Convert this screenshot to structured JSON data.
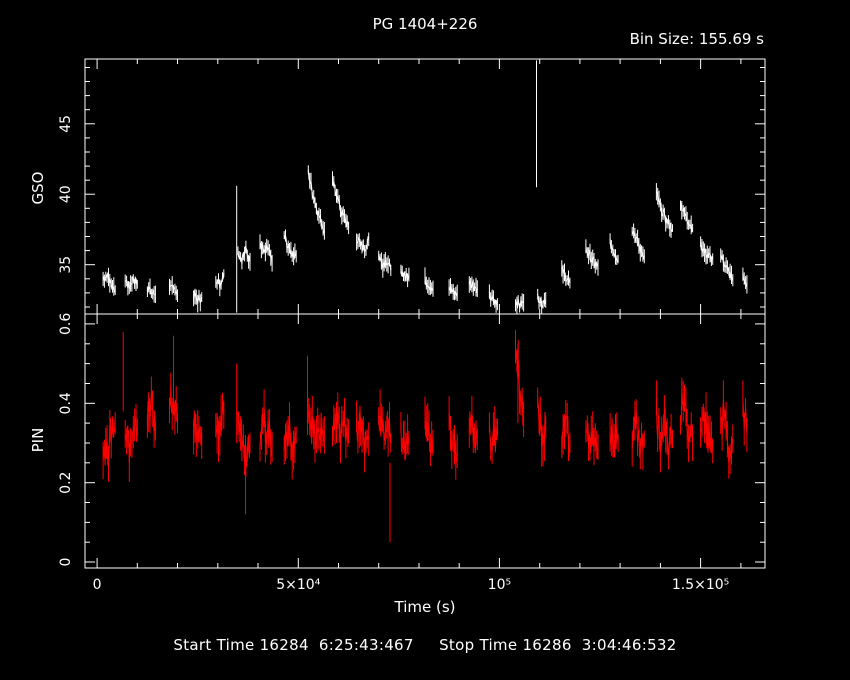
{
  "title": "PG 1404+226",
  "bin_size": "Bin Size: 155.69 s",
  "start_time": "Start Time 16284  6:25:43:467",
  "stop_time": "Stop Time 16286  3:04:46:532",
  "colors": {
    "gso": "#ffffff",
    "pin": "#ff0000",
    "axes": "#ffffff",
    "background": "#000000"
  },
  "chart_data": {
    "type": "line",
    "xlabel": "Time (s)",
    "xlim": [
      -3000,
      166000
    ],
    "x_ticks": [
      {
        "value": 0,
        "label": "0"
      },
      {
        "value": 50000,
        "label": "5×10⁴"
      },
      {
        "value": 100000,
        "label": "10⁵"
      },
      {
        "value": 150000,
        "label": "1.5×10⁵"
      }
    ],
    "panels": [
      {
        "name": "GSO",
        "ylabel": "GSO",
        "ylim": [
          31.5,
          49.6
        ],
        "y_ticks": [
          35,
          40,
          45
        ],
        "color": "#ffffff",
        "segments": [
          {
            "t": [
              1500,
              2500,
              3500,
              4500
            ],
            "v": [
              34.0,
              34.3,
              33.6,
              33.2
            ]
          },
          {
            "t": [
              7000,
              8000,
              9000,
              10000
            ],
            "v": [
              33.9,
              33.4,
              34.1,
              33.6
            ]
          },
          {
            "t": [
              12500,
              13500,
              14500
            ],
            "v": [
              33.4,
              33.0,
              32.9
            ]
          },
          {
            "t": [
              18000,
              19000,
              20000
            ],
            "v": [
              33.1,
              33.6,
              32.8
            ]
          },
          {
            "t": [
              24000,
              25000,
              26000
            ],
            "v": [
              32.9,
              32.5,
              32.7
            ]
          },
          {
            "t": [
              29500,
              30500,
              31500
            ],
            "v": [
              34.1,
              33.6,
              34.4
            ]
          },
          {
            "t": [
              35000,
              36000,
              37000,
              38000
            ],
            "v": [
              35.9,
              35.4,
              36.1,
              35.2
            ]
          },
          {
            "t": [
              40500,
              41500,
              42500,
              43500
            ],
            "v": [
              36.6,
              35.8,
              36.2,
              35.1
            ]
          },
          {
            "t": [
              46500,
              47500,
              48500,
              49500
            ],
            "v": [
              37.1,
              36.2,
              35.8,
              35.6
            ]
          },
          {
            "t": [
              52500,
              53500,
              54500,
              55500,
              56500
            ],
            "v": [
              41.5,
              40.2,
              39.1,
              38.2,
              37.4
            ]
          },
          {
            "t": [
              58500,
              59500,
              60500,
              61500,
              62500
            ],
            "v": [
              40.8,
              40.1,
              38.9,
              38.3,
              37.6
            ]
          },
          {
            "t": [
              64500,
              65500,
              66500,
              67500
            ],
            "v": [
              36.9,
              36.4,
              36.1,
              36.8
            ]
          },
          {
            "t": [
              70000,
              71000,
              72000,
              73000
            ],
            "v": [
              35.6,
              35.1,
              35.3,
              34.6
            ]
          },
          {
            "t": [
              75500,
              76500,
              77500
            ],
            "v": [
              34.6,
              34.1,
              34.3
            ]
          },
          {
            "t": [
              81500,
              82500,
              83500
            ],
            "v": [
              33.9,
              33.6,
              33.3
            ]
          },
          {
            "t": [
              87500,
              88500,
              89500
            ],
            "v": [
              33.4,
              33.1,
              33.0
            ]
          },
          {
            "t": [
              92500,
              93500,
              94500
            ],
            "v": [
              33.9,
              33.5,
              33.3
            ]
          },
          {
            "t": [
              97500,
              98500,
              99500
            ],
            "v": [
              32.8,
              32.4,
              32.2
            ]
          },
          {
            "t": [
              104000,
              105000,
              106000
            ],
            "v": [
              32.4,
              32.1,
              32.3
            ]
          },
          {
            "t": [
              109500,
              110500,
              111500
            ],
            "v": [
              32.8,
              32.3,
              32.5
            ]
          },
          {
            "t": [
              115500,
              116500,
              117500
            ],
            "v": [
              34.6,
              34.2,
              33.7
            ]
          },
          {
            "t": [
              121500,
              122500,
              123500,
              124500
            ],
            "v": [
              36.1,
              35.6,
              35.1,
              34.8
            ]
          },
          {
            "t": [
              127500,
              128500,
              129500
            ],
            "v": [
              36.5,
              35.9,
              35.4
            ]
          },
          {
            "t": [
              133000,
              134000,
              135000,
              136000
            ],
            "v": [
              37.6,
              36.8,
              36.1,
              35.6
            ]
          },
          {
            "t": [
              139000,
              140000,
              141000,
              142000,
              143000
            ],
            "v": [
              40.0,
              39.1,
              38.4,
              37.9,
              37.6
            ]
          },
          {
            "t": [
              145000,
              146000,
              147000,
              148000
            ],
            "v": [
              39.4,
              38.6,
              38.1,
              37.6
            ]
          },
          {
            "t": [
              150000,
              151000,
              152000,
              153000
            ],
            "v": [
              36.4,
              35.9,
              35.6,
              35.4
            ]
          },
          {
            "t": [
              155000,
              156000,
              157000,
              158000
            ],
            "v": [
              35.6,
              35.1,
              34.4,
              33.9
            ]
          },
          {
            "t": [
              160500,
              161500
            ],
            "v": [
              34.1,
              33.6
            ]
          }
        ],
        "spikes": [
          {
            "t": 34700,
            "v": 40.6
          },
          {
            "t": 109200,
            "v": 49.5
          }
        ]
      },
      {
        "name": "PIN",
        "ylabel": "PIN",
        "ylim": [
          -0.015,
          0.625
        ],
        "y_ticks": [
          0,
          0.2,
          0.4,
          0.6
        ],
        "color": "#ff0000",
        "segments": [
          {
            "t": [
              1500,
              2500,
              3500,
              4500
            ],
            "v": [
              0.3,
              0.27,
              0.33,
              0.35
            ]
          },
          {
            "t": [
              7000,
              8000,
              9000,
              10000
            ],
            "v": [
              0.35,
              0.29,
              0.31,
              0.34
            ]
          },
          {
            "t": [
              12500,
              13500,
              14500
            ],
            "v": [
              0.36,
              0.4,
              0.33
            ]
          },
          {
            "t": [
              18000,
              19000,
              20000
            ],
            "v": [
              0.42,
              0.38,
              0.35
            ]
          },
          {
            "t": [
              24000,
              25000,
              26000
            ],
            "v": [
              0.36,
              0.32,
              0.3
            ]
          },
          {
            "t": [
              29500,
              30500,
              31500
            ],
            "v": [
              0.33,
              0.35,
              0.37
            ]
          },
          {
            "t": [
              35000,
              36000,
              37000,
              38000
            ],
            "v": [
              0.36,
              0.32,
              0.28,
              0.3
            ]
          },
          {
            "t": [
              40500,
              41500,
              42500,
              43500
            ],
            "v": [
              0.31,
              0.35,
              0.33,
              0.29
            ]
          },
          {
            "t": [
              46500,
              47500,
              48500,
              49500
            ],
            "v": [
              0.3,
              0.34,
              0.28,
              0.32
            ]
          },
          {
            "t": [
              52500,
              53500,
              54500,
              55500,
              56500
            ],
            "v": [
              0.4,
              0.33,
              0.3,
              0.34,
              0.32
            ]
          },
          {
            "t": [
              58500,
              59500,
              60500,
              61500,
              62500
            ],
            "v": [
              0.32,
              0.36,
              0.31,
              0.35,
              0.33
            ]
          },
          {
            "t": [
              64500,
              65500,
              66500,
              67500
            ],
            "v": [
              0.33,
              0.37,
              0.3,
              0.31
            ]
          },
          {
            "t": [
              70000,
              71000,
              72000,
              73000
            ],
            "v": [
              0.38,
              0.32,
              0.35,
              0.3
            ]
          },
          {
            "t": [
              75500,
              76500,
              77500
            ],
            "v": [
              0.32,
              0.28,
              0.3
            ]
          },
          {
            "t": [
              81500,
              82500,
              83500
            ],
            "v": [
              0.35,
              0.31,
              0.3
            ]
          },
          {
            "t": [
              87500,
              88500,
              89500
            ],
            "v": [
              0.33,
              0.3,
              0.28
            ]
          },
          {
            "t": [
              92500,
              93500,
              94500
            ],
            "v": [
              0.36,
              0.32,
              0.31
            ]
          },
          {
            "t": [
              97500,
              98500,
              99500
            ],
            "v": [
              0.31,
              0.3,
              0.34
            ]
          },
          {
            "t": [
              104000,
              105000,
              106000
            ],
            "v": [
              0.52,
              0.44,
              0.36
            ]
          },
          {
            "t": [
              109500,
              110500,
              111500
            ],
            "v": [
              0.37,
              0.32,
              0.34
            ]
          },
          {
            "t": [
              115500,
              116500,
              117500
            ],
            "v": [
              0.33,
              0.35,
              0.3
            ]
          },
          {
            "t": [
              121500,
              122500,
              123500,
              124500
            ],
            "v": [
              0.34,
              0.3,
              0.32,
              0.29
            ]
          },
          {
            "t": [
              127500,
              128500,
              129500
            ],
            "v": [
              0.33,
              0.31,
              0.3
            ]
          },
          {
            "t": [
              133000,
              134000,
              135000,
              136000
            ],
            "v": [
              0.33,
              0.35,
              0.29,
              0.31
            ]
          },
          {
            "t": [
              139000,
              140000,
              141000,
              142000,
              143000
            ],
            "v": [
              0.37,
              0.32,
              0.36,
              0.3,
              0.31
            ]
          },
          {
            "t": [
              145000,
              146000,
              147000,
              148000
            ],
            "v": [
              0.37,
              0.4,
              0.33,
              0.3
            ]
          },
          {
            "t": [
              150000,
              151000,
              152000,
              153000
            ],
            "v": [
              0.33,
              0.36,
              0.3,
              0.28
            ]
          },
          {
            "t": [
              155000,
              156000,
              157000,
              158000
            ],
            "v": [
              0.34,
              0.38,
              0.29,
              0.31
            ]
          },
          {
            "t": [
              160500,
              161500
            ],
            "v": [
              0.4,
              0.32
            ]
          }
        ],
        "spikes": [
          {
            "t": 6500,
            "v": 0.58
          },
          {
            "t": 19000,
            "v": 0.57
          },
          {
            "t": 34700,
            "v": 0.5
          },
          {
            "t": 36900,
            "v": 0.12
          },
          {
            "t": 52300,
            "v": 0.52
          },
          {
            "t": 72800,
            "v": 0.05
          },
          {
            "t": 104600,
            "v": 0.55
          }
        ]
      }
    ]
  }
}
